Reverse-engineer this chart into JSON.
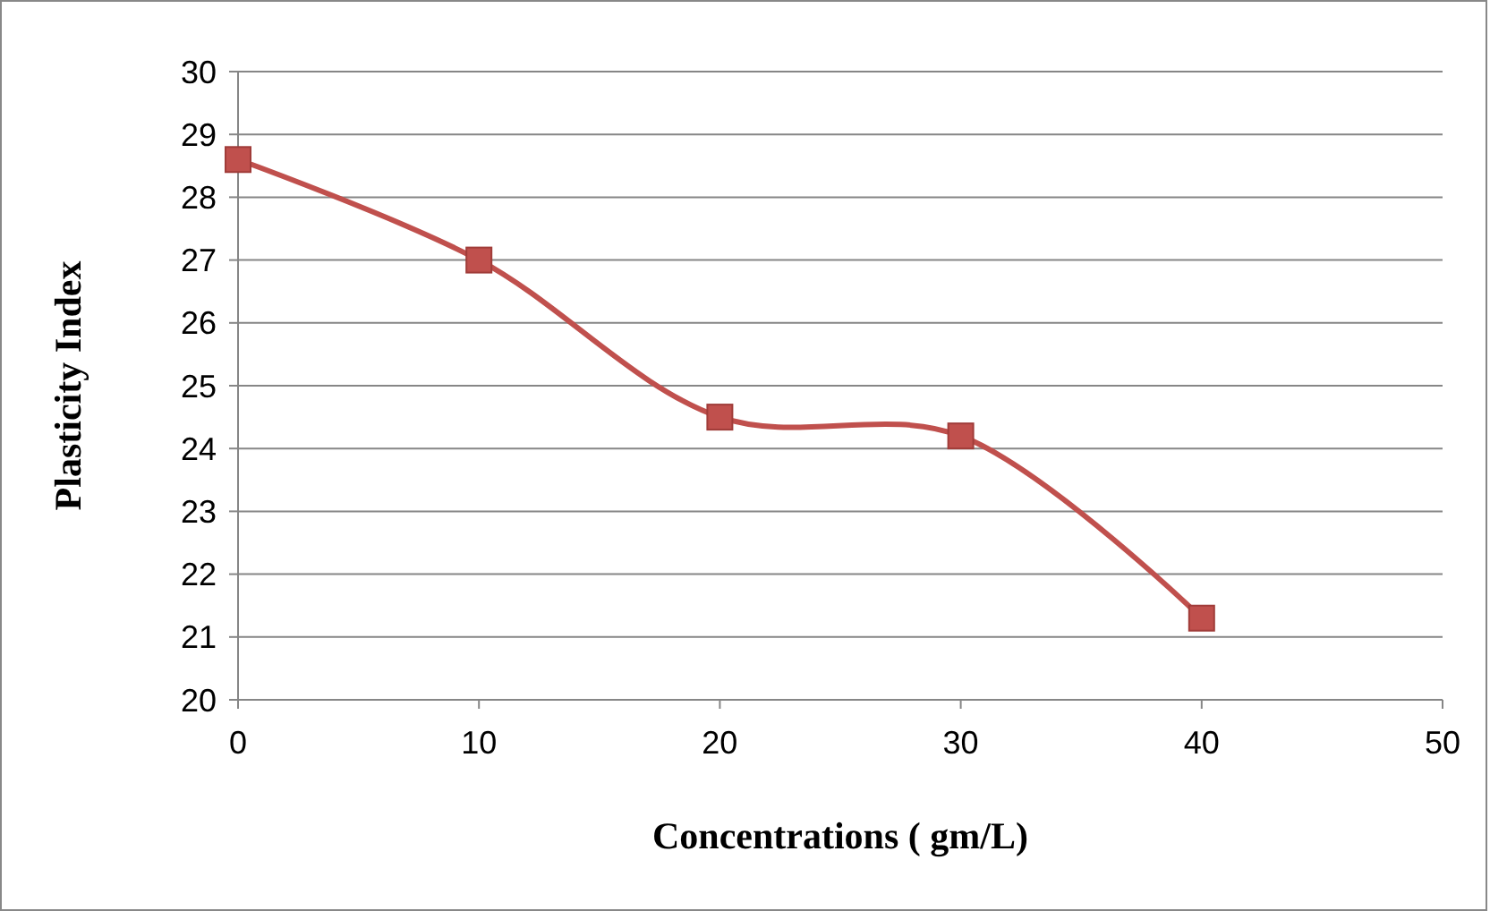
{
  "chart_data": {
    "type": "line",
    "xlabel": "Concentrations ( gm/L)",
    "ylabel": "Plasticity Index",
    "x": [
      0,
      10,
      20,
      30,
      40
    ],
    "series": [
      {
        "color": "#c0504d",
        "values": [
          28.6,
          27.0,
          24.5,
          24.2,
          21.3
        ]
      }
    ],
    "xlim": [
      0,
      50
    ],
    "xticks": [
      0,
      10,
      20,
      30,
      40,
      50
    ],
    "ylim": [
      20,
      30
    ],
    "yticks": [
      20,
      21,
      22,
      23,
      24,
      25,
      26,
      27,
      28,
      29,
      30
    ],
    "grid": "y",
    "marker": "square",
    "line_style": "solid"
  }
}
